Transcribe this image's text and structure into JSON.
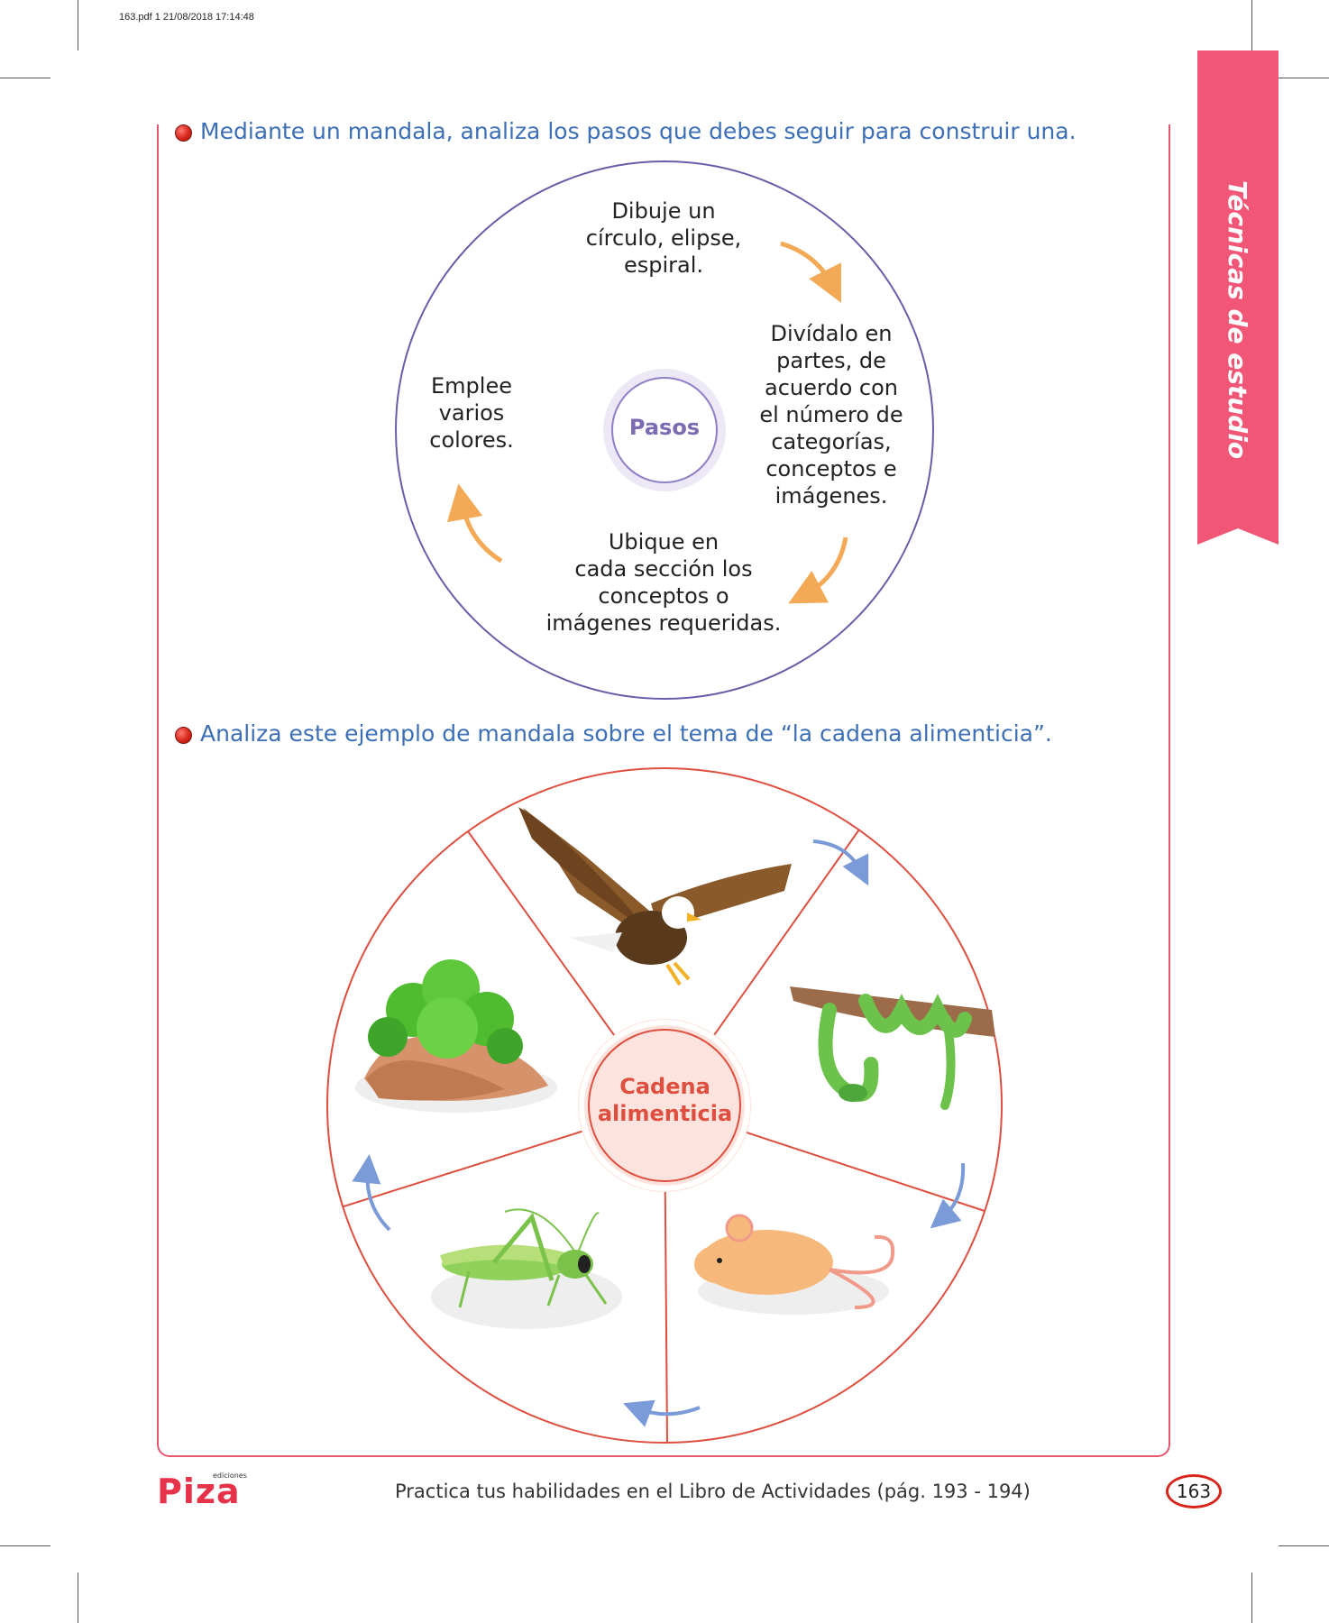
{
  "print_stamp": "163.pdf   1   21/08/2018   17:14:48",
  "section_tab": "Técnicas de estudio",
  "instructions": {
    "first": "Mediante un mandala, analiza los pasos que debes seguir para construir una.",
    "second": "Analiza este ejemplo de mandala sobre el tema de “la cadena alimenticia”."
  },
  "mandala_steps": {
    "center": "Pasos",
    "step_top": "Dibuje un\ncírculo, elipse,\nespiral.",
    "step_right": "Divídalo en\npartes, de\nacuerdo con\nel número de\ncategorías,\nconceptos e\nimágenes.",
    "step_bottom": "Ubique en\ncada sección los\nconceptos o\nimágenes requeridas.",
    "step_left": "Emplee\nvarios\ncolores."
  },
  "food_chain": {
    "center": "Cadena\nalimenticia",
    "sections": [
      "eagle",
      "snake",
      "mouse",
      "grasshopper",
      "plant"
    ]
  },
  "footer": {
    "logo": "Piza",
    "logo_small": "ediciones",
    "practice_text": "Practica tus habilidades en el Libro de Actividades (pág. 193 - 194)",
    "page_number": "163"
  },
  "colors": {
    "accent_pink": "#f25676",
    "instruction_blue": "#3d6fb6",
    "circle_purple": "#6a5ca8",
    "arrow_orange": "#f3a955",
    "arrow_blue": "#7b9ad8",
    "chain_red": "#de4f3f"
  }
}
